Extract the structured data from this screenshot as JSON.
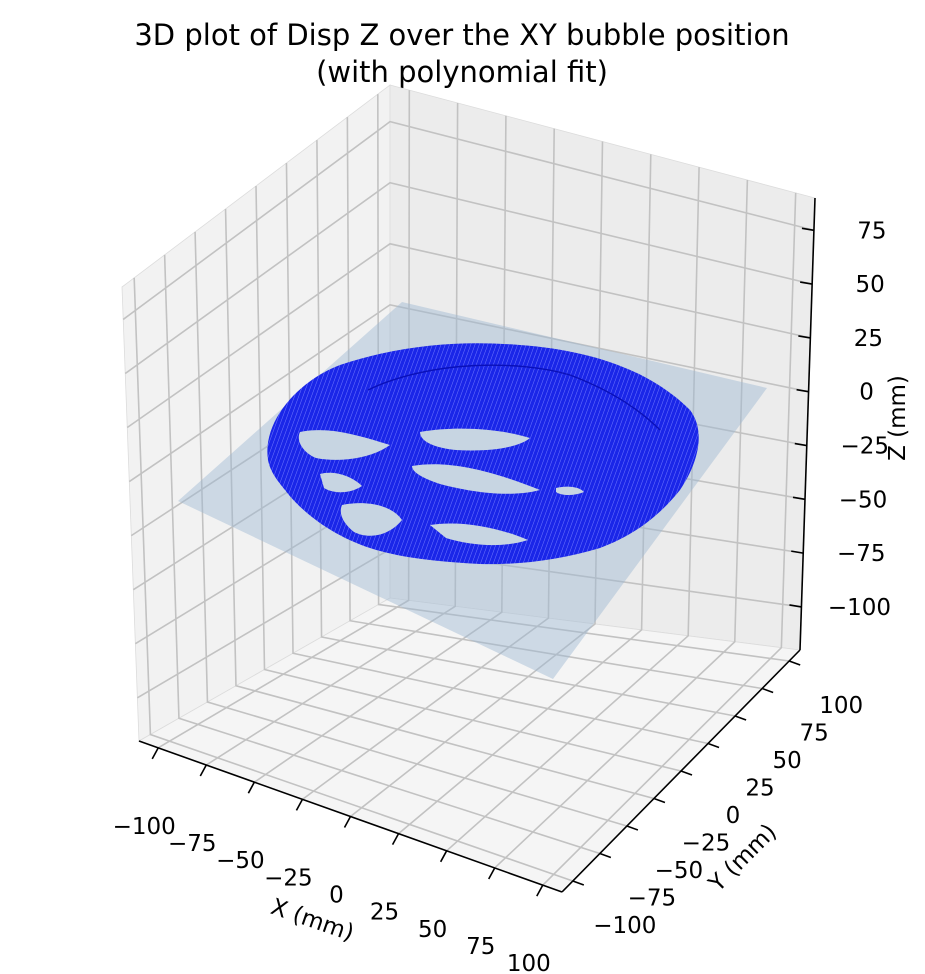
{
  "chart_data": {
    "type": "surface3d",
    "title_line1": "3D plot of Disp Z over the XY bubble position",
    "title_line2": "(with polynomial fit)",
    "xlabel": "X (mm)",
    "ylabel": "Y (mm)",
    "zlabel": "Z (mm)",
    "x_ticks": [
      "−100",
      "−75",
      "−50",
      "−25",
      "0",
      "25",
      "50",
      "75",
      "100"
    ],
    "y_ticks": [
      "−100",
      "−75",
      "−50",
      "−25",
      "0",
      "25",
      "50",
      "75",
      "100"
    ],
    "z_ticks": [
      "−100",
      "−75",
      "−50",
      "−25",
      "0",
      "25",
      "50",
      "75"
    ],
    "xlim": [
      -110,
      110
    ],
    "ylim": [
      -110,
      110
    ],
    "zlim": [
      -120,
      90
    ],
    "grid": true,
    "series": [
      {
        "kind": "measured",
        "description_color": "#0000ff",
        "region": "circle",
        "radius_mm": 100,
        "z_range_mm": [
          -40,
          20
        ]
      },
      {
        "kind": "fit",
        "description_color": "#9db9d2",
        "z_range_mm": [
          -115,
          10
        ]
      }
    ]
  }
}
